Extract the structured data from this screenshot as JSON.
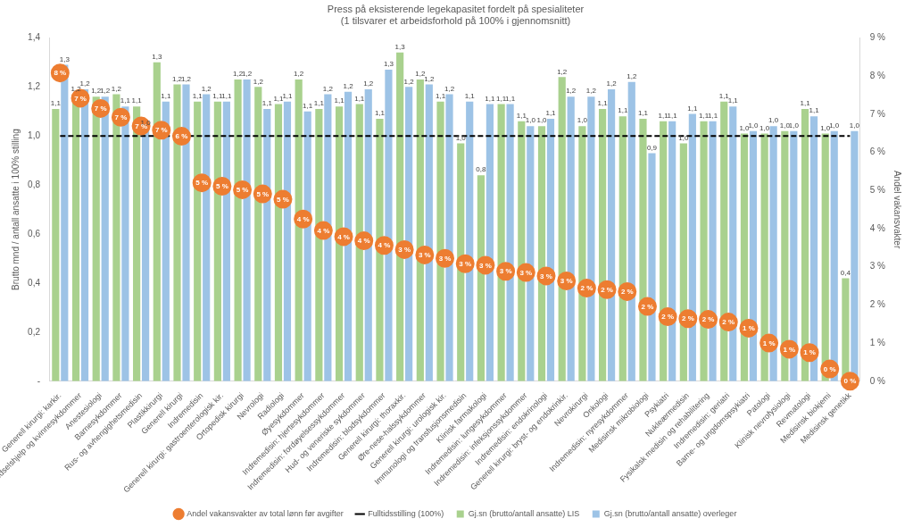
{
  "chart_data": {
    "type": "bar",
    "title": "Press på eksisterende legekapasitet fordelt på spesialiteter",
    "subtitle": "(1 tilsvarer et arbeidsforhold på 100% i gjennomsnitt)",
    "y_label": "Brutto mnd / antall ansatte i 100% stilling",
    "y2_label": "Andel vakansvakter",
    "categories": [
      "Generell kirurgi: karkir.",
      "Fødselshjelp og kvinnesykdommer",
      "Anestesiologi",
      "Barnesykdommer",
      "Rus- og avhengighetsmedisin",
      "Plastikkirurgi",
      "Generell kirurgi",
      "Indremedisin",
      "Generell kirurgi: gastroenterologisk kir.",
      "Ortopedisk kirurgi",
      "Nevrologi",
      "Radiologi",
      "Øyesykdommer",
      "Indremedisin: hjertesykdommer",
      "Indremedisin: fordøyelsessykdommer",
      "Hud- og veneriske sykdommer",
      "Indremedisin: blodsykdommer",
      "Generell kirurgi: thoraxkir.",
      "Øre-nese-halssykdommer",
      "Generell kirurgi: urologisk kir.",
      "Immunologi og transfusjonsmedisin",
      "Klinisk farmakologi",
      "Indremedisin: lungesykdommer",
      "Indremedisin: infeksjonssykdommer",
      "Indremedisin: endokrinologi",
      "Generell kirurgi: bryst- og endokrinkir.",
      "Nevrokirurgi",
      "Onkologi",
      "Indremedisin: nyresykdommer",
      "Medisinsk mikrobiologi",
      "Psykiatri",
      "Nukleærmedisin",
      "Fysikalsk medisin og rehabilitering",
      "Indremedisin: geriatri",
      "Barne- og ungdomspsykiatri",
      "Patologi",
      "Klinisk nevrofysiologi",
      "Revmatologi",
      "Medisinsk biokjemi",
      "Medisinsk genetikk"
    ],
    "series": [
      {
        "name": "Gj.sn (brutto/antall ansatte) LIS",
        "type": "bar",
        "color": "#a9d18e",
        "data_labels": true,
        "values": [
          1.11,
          1.17,
          1.16,
          1.17,
          1.12,
          1.3,
          1.21,
          1.14,
          1.14,
          1.23,
          1.2,
          1.13,
          1.23,
          1.11,
          1.12,
          1.13,
          1.07,
          1.34,
          1.23,
          1.14,
          0.97,
          0.84,
          1.13,
          1.06,
          1.04,
          1.24,
          1.04,
          1.11,
          1.08,
          1.07,
          1.06,
          0.97,
          1.06,
          1.14,
          1.01,
          1.01,
          1.02,
          1.11,
          1.01,
          0.42
        ],
        "value_labels": [
          "1,1",
          "1,2",
          "1,2",
          "1,2",
          "1,1",
          "1,3",
          "1,2",
          "1,1",
          "1,1",
          "1,2",
          "1,2",
          "1,1",
          "1,2",
          "1,1",
          "1,1",
          "1,1",
          "1,1",
          "1,3",
          "1,2",
          "1,1",
          "1,0",
          "0,8",
          "1,1",
          "1,1",
          "1,0",
          "1,2",
          "1,0",
          "1,1",
          "1,1",
          "1,1",
          "1,1",
          "1,0",
          "1,1",
          "1,1",
          "1,0",
          "1,0",
          "1,0",
          "1,1",
          "1,0",
          "0,4"
        ]
      },
      {
        "name": "Gj.sn (brutto/antall ansatte) overleger",
        "type": "bar",
        "color": "#9dc3e6",
        "data_labels": true,
        "values": [
          1.29,
          1.19,
          1.16,
          1.12,
          1.03,
          1.14,
          1.21,
          1.17,
          1.14,
          1.23,
          1.11,
          1.14,
          1.1,
          1.17,
          1.18,
          1.19,
          1.27,
          1.2,
          1.21,
          1.17,
          1.14,
          1.13,
          1.13,
          1.04,
          1.07,
          1.16,
          1.16,
          1.19,
          1.22,
          0.93,
          1.06,
          1.09,
          1.06,
          1.12,
          1.02,
          1.04,
          1.02,
          1.08,
          1.02,
          1.02
        ],
        "value_labels": [
          "1,3",
          "1,2",
          "1,2",
          "1,1",
          "1,0",
          "1,1",
          "1,2",
          "1,2",
          "1,1",
          "1,2",
          "1,1",
          "1,1",
          "1,1",
          "1,2",
          "1,2",
          "1,2",
          "1,3",
          "1,2",
          "1,2",
          "1,2",
          "1,1",
          "1,1",
          "1,1",
          "1,0",
          "1,1",
          "1,2",
          "1,2",
          "1,2",
          "1,2",
          "0,9",
          "1,1",
          "1,1",
          "1,1",
          "1,1",
          "1,0",
          "1,0",
          "1,0",
          "1,1",
          "1,0",
          "1,0"
        ]
      },
      {
        "name": "Fulltidsstilling (100%)",
        "type": "line",
        "color": "#000000",
        "line_style": "dashed",
        "marker": "none",
        "values": [
          1,
          1,
          1,
          1,
          1,
          1,
          1,
          1,
          1,
          1,
          1,
          1,
          1,
          1,
          1,
          1,
          1,
          1,
          1,
          1,
          1,
          1,
          1,
          1,
          1,
          1,
          1,
          1,
          1,
          1,
          1,
          1,
          1,
          1,
          1,
          1,
          1,
          1,
          1,
          1
        ]
      },
      {
        "name": "Andel vakansvakter av total lønn før avgifter",
        "type": "line",
        "color": "#ed7d31",
        "line_style": "none",
        "marker": "circle",
        "axis": "y2",
        "data_labels": true,
        "values": [
          8.08,
          7.42,
          7.15,
          6.92,
          6.69,
          6.58,
          6.42,
          5.2,
          5.11,
          5.02,
          4.91,
          4.77,
          4.25,
          3.95,
          3.79,
          3.68,
          3.56,
          3.45,
          3.31,
          3.22,
          3.08,
          3.04,
          2.88,
          2.85,
          2.76,
          2.63,
          2.44,
          2.4,
          2.35,
          1.96,
          1.69,
          1.64,
          1.62,
          1.55,
          1.39,
          1.0,
          0.84,
          0.75,
          0.32,
          0.0
        ],
        "value_labels": [
          "8 %",
          "7 %",
          "7 %",
          "7 %",
          "7 %",
          "7 %",
          "6 %",
          "5 %",
          "5 %",
          "5 %",
          "5 %",
          "5 %",
          "4 %",
          "4 %",
          "4 %",
          "4 %",
          "4 %",
          "3 %",
          "3 %",
          "3 %",
          "3 %",
          "3 %",
          "3 %",
          "3 %",
          "3 %",
          "3 %",
          "2 %",
          "2 %",
          "2 %",
          "2 %",
          "2 %",
          "2 %",
          "2 %",
          "2 %",
          "1 %",
          "1 %",
          "1 %",
          "1 %",
          "0 %",
          "0 %"
        ]
      }
    ],
    "ylim": [
      0,
      1.4
    ],
    "yticks": [
      {
        "value": 0,
        "label": "-"
      },
      {
        "value": 0.2,
        "label": "0,2"
      },
      {
        "value": 0.4,
        "label": "0,4"
      },
      {
        "value": 0.6,
        "label": "0,6"
      },
      {
        "value": 0.8,
        "label": "0,8"
      },
      {
        "value": 1.0,
        "label": "1,0"
      },
      {
        "value": 1.2,
        "label": "1,2"
      },
      {
        "value": 1.4,
        "label": "1,4"
      }
    ],
    "y2lim": [
      0,
      9
    ],
    "y2ticks": [
      {
        "value": 0,
        "label": "0 %"
      },
      {
        "value": 1,
        "label": "1 %"
      },
      {
        "value": 2,
        "label": "2 %"
      },
      {
        "value": 3,
        "label": "3 %"
      },
      {
        "value": 4,
        "label": "4 %"
      },
      {
        "value": 5,
        "label": "5 %"
      },
      {
        "value": 6,
        "label": "6 %"
      },
      {
        "value": 7,
        "label": "7 %"
      },
      {
        "value": 8,
        "label": "8 %"
      },
      {
        "value": 9,
        "label": "9 %"
      }
    ],
    "grid": false,
    "legend": "bottom"
  }
}
